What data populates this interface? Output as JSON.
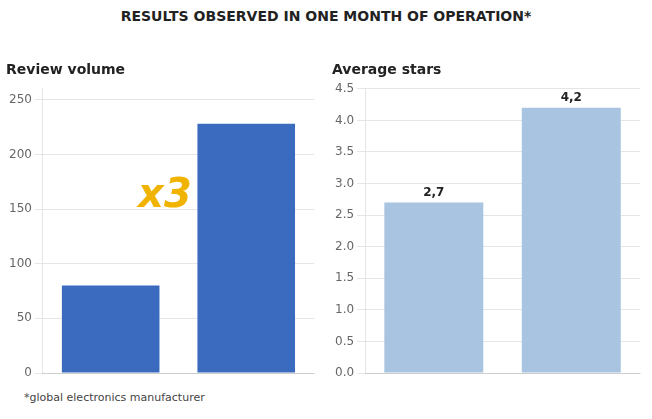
{
  "title": "RESULTS OBSERVED IN ONE MONTH OF OPERATION*",
  "footnote": "*global electronics manufacturer",
  "chart_data": [
    {
      "type": "bar",
      "title": "Review volume",
      "categories": [
        null,
        null
      ],
      "values": [
        80,
        228
      ],
      "color": "#3a6bbf",
      "ylim": [
        0,
        260
      ],
      "yticks": [
        0,
        50,
        100,
        150,
        200,
        250
      ],
      "grid": true,
      "tick_labels": "y",
      "annotation": {
        "text": "x3",
        "color": "#f0b400"
      }
    },
    {
      "type": "bar",
      "title": "Average stars",
      "categories": [
        null,
        null
      ],
      "values": [
        2.7,
        4.2
      ],
      "value_labels": [
        "2,7",
        "4,2"
      ],
      "data_labels": true,
      "color": "#a8c4e0",
      "ylim": [
        0,
        4.5
      ],
      "yticks": [
        {
          "value": 0,
          "label": "0.0"
        },
        0.5,
        {
          "value": 1,
          "label": "1.0"
        },
        1.5,
        {
          "value": 2,
          "label": "2.0"
        },
        2.5,
        {
          "value": 3,
          "label": "3.0"
        },
        3.5,
        {
          "value": 4,
          "label": "4.0"
        },
        4.5
      ],
      "grid": true,
      "tick_labels": "y"
    }
  ]
}
